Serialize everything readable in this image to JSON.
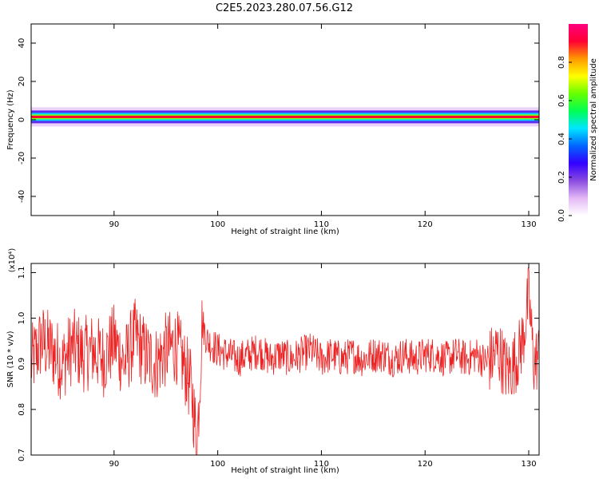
{
  "title": "C2E5.2023.280.07.56.G12",
  "colors": {
    "snr_line": "#ee2222",
    "band_core": "#e0242f",
    "background": "#ffffff"
  },
  "spectrogram": {
    "xlabel": "Height of straight line (km)",
    "ylabel": "Frequency (Hz)",
    "xlim": [
      82,
      131
    ],
    "ylim": [
      -50,
      50
    ],
    "xticks": [
      90,
      100,
      110,
      120,
      130
    ],
    "yticks": [
      40,
      20,
      0,
      -20,
      -40
    ],
    "band_center_hz": 1.5,
    "colorbar": {
      "label": "Normalized spectral amplitude",
      "range": [
        0,
        1
      ],
      "ticks": [
        "0.0",
        "0.2",
        "0.4",
        "0.6",
        "0.8"
      ],
      "colors": [
        "#ffffff",
        "#e3b8f5",
        "#8a4be0",
        "#3300ff",
        "#0066ff",
        "#00e5ff",
        "#00ff55",
        "#66ff00",
        "#ffff00",
        "#ff9a00",
        "#ff0033",
        "#ff0080"
      ]
    }
  },
  "chart_data": {
    "type": "line",
    "title": "",
    "xlabel": "Height of straight line (km)",
    "ylabel": "SNR (10 * v/v)",
    "y_multiplier_label": "(x10⁴)",
    "xlim": [
      82,
      131
    ],
    "ylim": [
      0.7,
      1.12
    ],
    "xticks": [
      90,
      100,
      110,
      120,
      130
    ],
    "yticks": [
      0.7,
      0.8,
      0.9,
      1.0,
      1.1
    ],
    "x": [
      82,
      83,
      84,
      85,
      86,
      87,
      88,
      89,
      90,
      91,
      92,
      93,
      94,
      95,
      96,
      97,
      97.5,
      98,
      98.5,
      99,
      100,
      101,
      102,
      103,
      104,
      105,
      106,
      107,
      108,
      109,
      110,
      111,
      112,
      113,
      114,
      115,
      116,
      117,
      118,
      119,
      120,
      121,
      122,
      123,
      124,
      125,
      126,
      127,
      128,
      129,
      129.5,
      130,
      130.5,
      131
    ],
    "values": [
      0.9,
      0.95,
      0.93,
      0.9,
      0.94,
      0.92,
      0.93,
      0.91,
      0.95,
      0.9,
      0.96,
      0.92,
      0.9,
      0.93,
      0.94,
      0.88,
      0.84,
      0.72,
      0.99,
      0.95,
      0.93,
      0.92,
      0.91,
      0.92,
      0.93,
      0.91,
      0.92,
      0.91,
      0.92,
      0.93,
      0.91,
      0.92,
      0.91,
      0.92,
      0.91,
      0.92,
      0.92,
      0.91,
      0.92,
      0.91,
      0.92,
      0.92,
      0.91,
      0.92,
      0.91,
      0.92,
      0.9,
      0.93,
      0.88,
      0.92,
      0.96,
      1.05,
      0.9,
      0.92
    ]
  }
}
